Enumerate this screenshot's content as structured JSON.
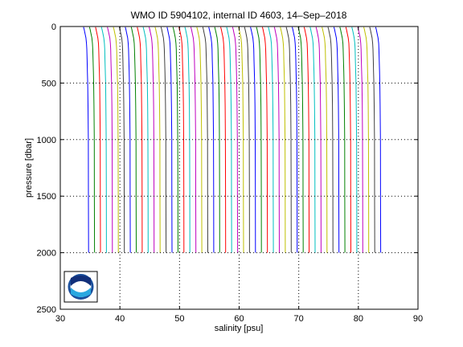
{
  "chart_data": {
    "type": "line",
    "title": "WMO ID 5904102, internal ID 4603, 14–Sep–2018",
    "xlabel": "salinity [psu]",
    "ylabel": "pressure [dbar]",
    "xlim": [
      30,
      90
    ],
    "ylim": [
      2500,
      0
    ],
    "y_reversed": true,
    "x_ticks": [
      30,
      40,
      50,
      60,
      70,
      80,
      90
    ],
    "y_ticks": [
      0,
      500,
      1000,
      1500,
      2000,
      2500
    ],
    "x_tick_labels": [
      "30",
      "40",
      "50",
      "60",
      "70",
      "80",
      "90"
    ],
    "y_tick_labels": [
      "0",
      "500",
      "1000",
      "1500",
      "2000",
      "2500"
    ],
    "grid": true,
    "grid_style": "dotted",
    "profile_count": 50,
    "profile_offset_psu": 1.0,
    "profile_colors": [
      "#0000ff",
      "#008000",
      "#ff0000",
      "#00bfbf",
      "#bf00bf",
      "#bfbf00",
      "#404040"
    ],
    "profile_shape": {
      "pressure": [
        5,
        25,
        50,
        100,
        150,
        200,
        300,
        400,
        500,
        700,
        1000,
        1500,
        2000
      ],
      "salinity_first": [
        33.9,
        34.0,
        34.1,
        34.3,
        34.4,
        34.45,
        34.5,
        34.55,
        34.6,
        34.65,
        34.7,
        34.72,
        34.74
      ]
    },
    "logo": "noaa-logo"
  }
}
